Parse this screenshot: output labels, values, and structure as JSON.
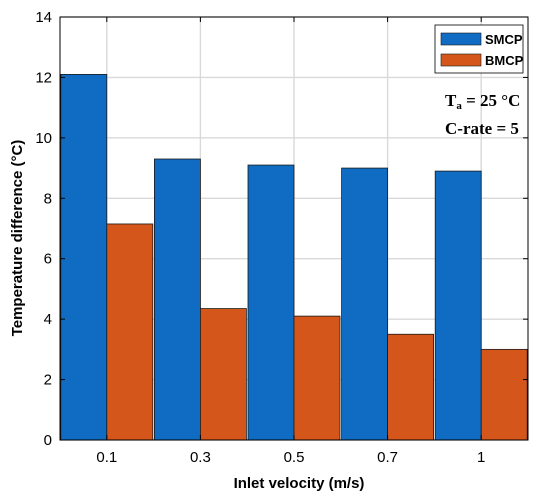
{
  "chart_data": {
    "type": "bar",
    "title": "",
    "xlabel": "Inlet velocity (m/s)",
    "ylabel": "Temperature difference (°C)",
    "categories": [
      "0.1",
      "0.3",
      "0.5",
      "0.7",
      "1"
    ],
    "series": [
      {
        "name": "SMCP",
        "color": "#0f6cc2",
        "values": [
          12.1,
          9.3,
          9.1,
          9.0,
          8.9
        ]
      },
      {
        "name": "BMCP",
        "color": "#d5561a",
        "values": [
          7.15,
          4.35,
          4.1,
          3.5,
          3.0
        ]
      }
    ],
    "ylim": [
      0,
      14
    ],
    "yticks": [
      0,
      2,
      4,
      6,
      8,
      10,
      12,
      14
    ],
    "grid": true,
    "legend_position": "top-right",
    "annotations": {
      "ta_main": "T",
      "ta_sub": "a",
      "ta_value": " = 25  °C",
      "crate": "C-rate = 5"
    }
  }
}
